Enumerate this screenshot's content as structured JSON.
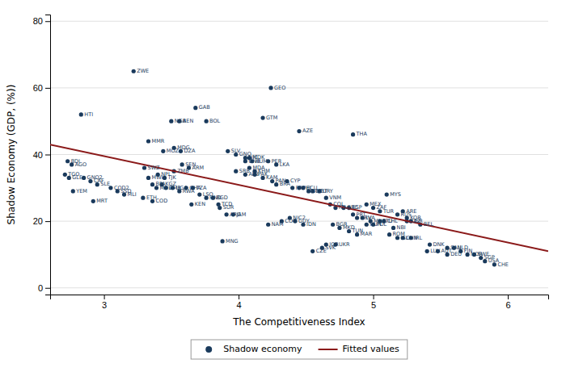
{
  "chart_data": {
    "type": "scatter",
    "xlabel": "The Competitiveness Index",
    "ylabel": "Shadow Economy (GDP, (%))",
    "xlim": [
      2.6,
      6.3
    ],
    "ylim": [
      -2,
      82
    ],
    "xticks": [
      3,
      4,
      5,
      6
    ],
    "yticks": [
      0,
      20,
      40,
      60,
      80
    ],
    "grid": "y",
    "legend": "bottom",
    "series": [
      {
        "name": "Shadow economy",
        "type": "scatter",
        "marker": "circle",
        "color": "#1a3a5c",
        "x": [
          2.83,
          3.22,
          2.73,
          2.76,
          2.71,
          2.74,
          2.77,
          2.92,
          3.33,
          3.52,
          3.44,
          3.57,
          3.5,
          3.56,
          3.68,
          3.76,
          3.3,
          3.33,
          3.4,
          3.45,
          3.52,
          3.58,
          3.63,
          3.36,
          3.39,
          3.43,
          3.46,
          3.51,
          3.56,
          3.61,
          3.66,
          3.71,
          3.76,
          3.81,
          3.29,
          3.36,
          3.65,
          3.85,
          3.86,
          3.91,
          3.96,
          4.24,
          4.18,
          3.92,
          3.98,
          4.05,
          4.08,
          4.05,
          4.1,
          4.22,
          4.28,
          3.98,
          4.05,
          4.12,
          4.18,
          4.25,
          4.28,
          4.36,
          4.4,
          4.45,
          4.48,
          4.52,
          4.55,
          4.6,
          4.65,
          4.68,
          4.72,
          4.78,
          4.45,
          4.85,
          4.82,
          4.85,
          4.88,
          4.92,
          4.95,
          4.98,
          5.0,
          5.05,
          5.08,
          5.12,
          5.15,
          5.18,
          5.22,
          5.28,
          5.1,
          5.22,
          5.25,
          5.28,
          5.35,
          5.42,
          5.55,
          5.6,
          5.65,
          5.7,
          5.75,
          5.8,
          5.83,
          5.9,
          5.48,
          5.4,
          5.55,
          4.65,
          4.72,
          4.62,
          4.55,
          3.88,
          4.7,
          4.75,
          4.82,
          4.88,
          4.32,
          4.42,
          4.48,
          4.95,
          5.0,
          5.05,
          5.18,
          5.25,
          4.08,
          4.12,
          2.85,
          2.9,
          2.95,
          3.05,
          3.1,
          3.15,
          4.22,
          4.38
        ],
        "values": [
          52,
          65,
          38,
          37,
          34,
          33,
          29,
          26,
          44,
          42,
          41,
          41,
          50,
          50,
          54,
          50,
          36,
          33,
          34,
          33,
          35,
          37,
          36,
          31,
          30,
          31,
          30,
          30,
          29,
          30,
          30,
          28,
          27,
          27,
          27,
          26,
          25,
          25,
          24,
          22,
          22,
          60,
          51,
          41,
          40,
          39,
          39,
          38,
          38,
          38,
          37,
          35,
          34,
          34,
          33,
          32,
          31,
          32,
          30,
          30,
          30,
          29,
          29,
          29,
          27,
          25,
          24,
          24,
          47,
          46,
          24,
          22,
          21,
          21,
          19,
          20,
          19,
          20,
          20,
          16,
          18,
          15,
          15,
          15,
          28,
          23,
          21,
          20,
          19,
          13,
          12,
          12,
          11,
          10,
          10,
          9,
          8,
          7,
          11,
          11,
          10,
          13,
          13,
          12,
          11,
          14,
          19,
          18,
          17,
          16,
          20,
          20,
          19,
          25,
          24,
          23,
          22,
          20,
          36,
          35,
          33,
          32,
          31,
          30,
          29,
          28,
          19,
          21
        ],
        "labels": [
          "HTI",
          "ZWE",
          "BDI",
          "AGO",
          "TGO",
          "GLE",
          "YEM",
          "MRT",
          "MMR",
          "MDG",
          "MOZ",
          "DZA",
          "NGA",
          "BEN",
          "GAB",
          "BOL",
          "SWZ",
          "MWI",
          "NPL",
          "TJK",
          "ZMB",
          "SEN",
          "ARM",
          "BFA",
          "MOL",
          "KGZ",
          "CMR",
          "UGA",
          "RWA",
          "GHA",
          "TZA",
          "LSO",
          "HND",
          "BGD",
          "ETH",
          "COD",
          "KEN",
          "TCD",
          "SUR",
          "ARG",
          "JAM",
          "GEO",
          "GTM",
          "SLV",
          "GNQ",
          "NIC",
          "MDK",
          "GNB",
          "HUM",
          "PER",
          "LKA",
          "SRB",
          "ALB",
          "PAK",
          "KAM",
          "PAN",
          "BRA",
          "CYP",
          "PRY",
          "PHL",
          "ECU",
          "BOT",
          "MBT",
          "URY",
          "VNM",
          "COL",
          "ITA",
          "GRC",
          "AZE",
          "THA",
          "ESP",
          "PRT",
          "HRV",
          "LVA",
          "HUN",
          "MNE",
          "POL",
          "LTU",
          "CHL",
          "ROM",
          "NBI",
          "ISL",
          "CHN",
          "IRL",
          "MYS",
          "ARE",
          "KOR",
          "ISR",
          "BEL",
          "DNK",
          "SAU",
          "NLD",
          "FIN",
          "NOR",
          "SWE",
          "SGP",
          "USA",
          "CHE",
          "AUT",
          "LUX",
          "DEU",
          "JOR",
          "UKR",
          "SVK",
          "CZE",
          "MNG",
          "BGR",
          "MKD",
          "TUN",
          "MAR",
          "COG",
          "GUY",
          "IDN",
          "MEX",
          "ZAF",
          "TUR",
          "RUS",
          "KAZ",
          "MDA",
          "KHM",
          "GNQ2",
          "CAF",
          "SLE",
          "COD2",
          "SSD",
          "MLI",
          "NAM",
          "NIC2"
        ]
      },
      {
        "name": "Fitted values",
        "type": "line",
        "line_style": "solid",
        "color": "#8b1a1a",
        "x": [
          2.6,
          6.3
        ],
        "values": [
          43,
          11
        ]
      }
    ]
  }
}
